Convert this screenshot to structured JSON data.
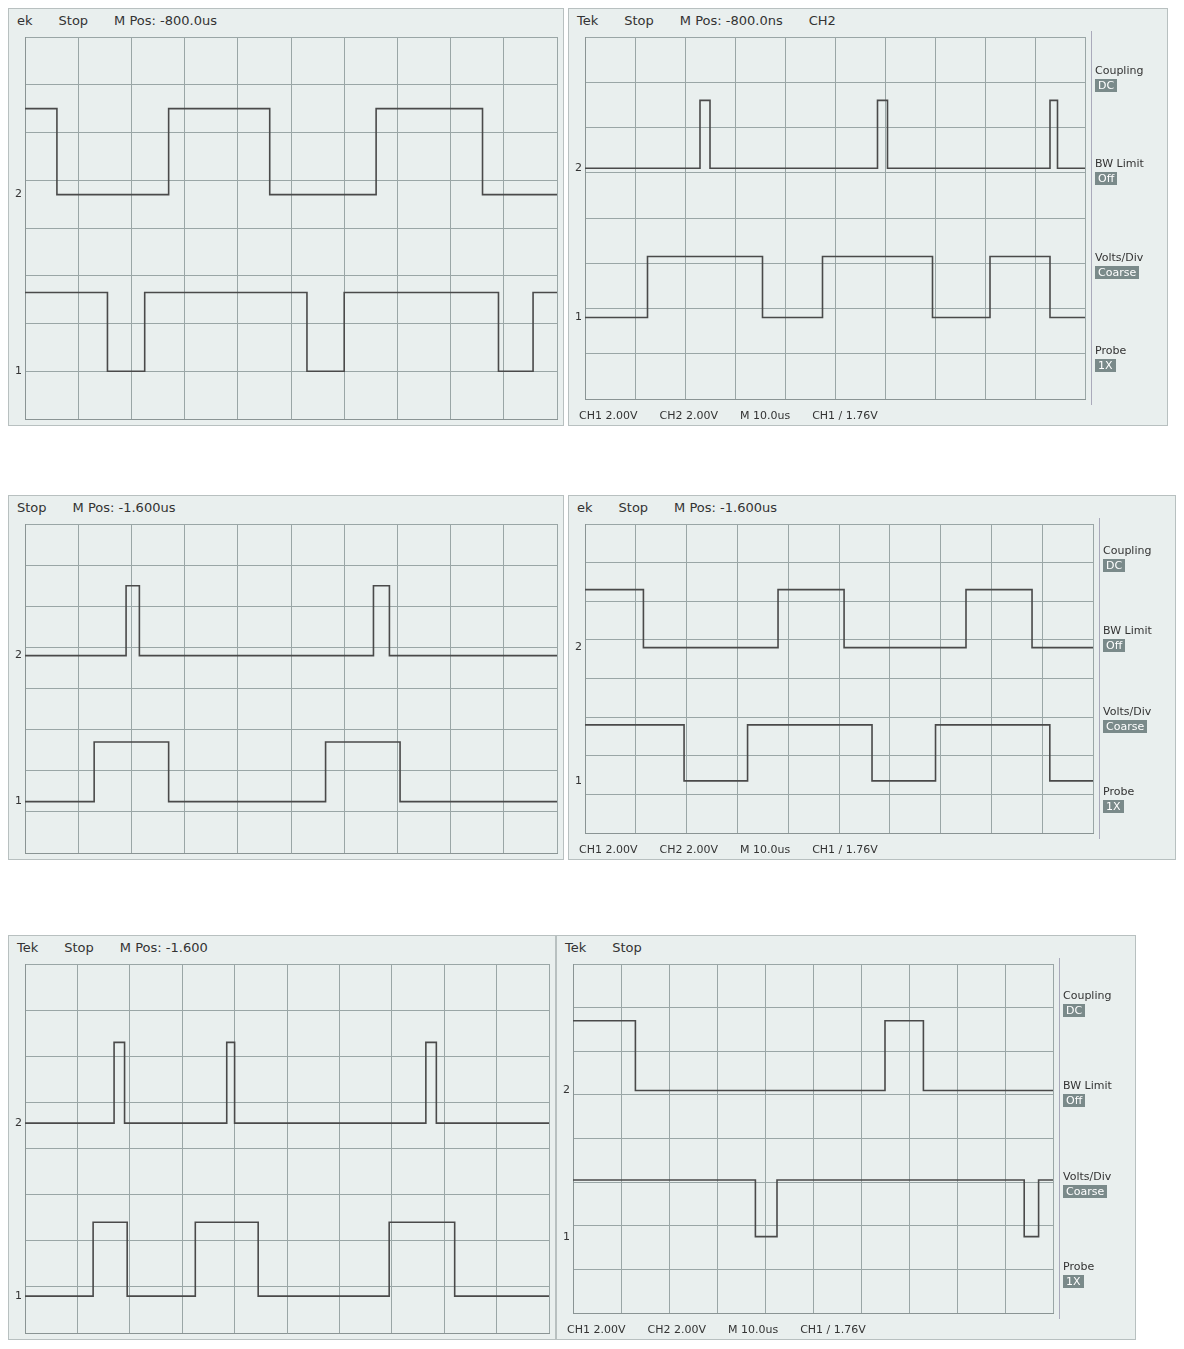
{
  "chart_data": [
    {
      "type": "line",
      "header": [
        "ek",
        "Stop",
        "M Pos: -800.0us"
      ],
      "side_menu": null,
      "footer": null,
      "xlim": [
        0,
        10
      ],
      "ylim": [
        0,
        8
      ],
      "xticks": [
        0,
        1,
        2,
        3,
        4,
        5,
        6,
        7,
        8,
        9,
        10
      ],
      "yticks": [
        0,
        1,
        2,
        3,
        4,
        5,
        6,
        7,
        8
      ],
      "grid": true,
      "tick_labels": false,
      "line_style": "stepped",
      "series": [
        {
          "name": "2",
          "color": "#4a4a4a",
          "x": [
            0,
            0.6,
            2.7,
            4.6,
            6.6,
            8.6,
            10
          ],
          "values": [
            6.5,
            4.7,
            6.5,
            4.7,
            6.5,
            4.7,
            4.7
          ]
        },
        {
          "name": "1",
          "color": "#4a4a4a",
          "x": [
            0,
            1.55,
            2.25,
            5.3,
            6.0,
            8.9,
            9.55,
            10
          ],
          "values": [
            2.65,
            1.0,
            2.65,
            1.0,
            2.65,
            1.0,
            2.65,
            2.65
          ]
        }
      ]
    },
    {
      "type": "line",
      "header": [
        "Tek",
        "Stop",
        "M Pos: -800.0ns",
        "CH2"
      ],
      "side_menu": [
        {
          "label": "Coupling",
          "value": "DC"
        },
        {
          "label": "BW Limit",
          "value": "Off"
        },
        {
          "label": "Volts/Div",
          "value": "Coarse"
        },
        {
          "label": "Probe",
          "value": "1X"
        }
      ],
      "footer": [
        "CH1 2.00V",
        "CH2 2.00V",
        "M 10.0us",
        "CH1 / 1.76V"
      ],
      "xlim": [
        0,
        10
      ],
      "ylim": [
        0,
        8
      ],
      "xticks": [
        0,
        1,
        2,
        3,
        4,
        5,
        6,
        7,
        8,
        9,
        10
      ],
      "yticks": [
        0,
        1,
        2,
        3,
        4,
        5,
        6,
        7,
        8
      ],
      "grid": true,
      "tick_labels": false,
      "line_style": "stepped",
      "series": [
        {
          "name": "2",
          "color": "#4a4a4a",
          "x": [
            0,
            2.3,
            2.5,
            5.85,
            6.05,
            9.3,
            9.45,
            10
          ],
          "values": [
            5.1,
            6.6,
            5.1,
            6.6,
            5.1,
            6.6,
            5.1,
            5.1
          ]
        },
        {
          "name": "1",
          "color": "#4a4a4a",
          "x": [
            0,
            1.25,
            3.55,
            4.75,
            6.95,
            8.1,
            9.3,
            10
          ],
          "values": [
            1.8,
            3.15,
            1.8,
            3.15,
            1.8,
            3.15,
            1.8,
            1.8
          ]
        }
      ]
    },
    {
      "type": "line",
      "header": [
        "Stop",
        "M Pos: -1.600us"
      ],
      "side_menu": null,
      "footer": null,
      "xlim": [
        0,
        10
      ],
      "ylim": [
        0,
        8
      ],
      "xticks": [
        0,
        1,
        2,
        3,
        4,
        5,
        6,
        7,
        8,
        9,
        10
      ],
      "yticks": [
        0,
        1,
        2,
        3,
        4,
        5,
        6,
        7,
        8
      ],
      "grid": true,
      "tick_labels": false,
      "line_style": "stepped",
      "series": [
        {
          "name": "2",
          "color": "#4a4a4a",
          "x": [
            0,
            1.9,
            2.15,
            6.55,
            6.85,
            10
          ],
          "values": [
            4.8,
            6.5,
            4.8,
            6.5,
            4.8,
            4.8
          ]
        },
        {
          "name": "1",
          "color": "#4a4a4a",
          "x": [
            0,
            1.3,
            2.7,
            5.65,
            7.05,
            10
          ],
          "values": [
            1.25,
            2.7,
            1.25,
            2.7,
            1.25,
            1.25
          ]
        }
      ]
    },
    {
      "type": "line",
      "header": [
        "ek",
        "Stop",
        "M Pos: -1.600us"
      ],
      "side_menu": [
        {
          "label": "Coupling",
          "value": "DC"
        },
        {
          "label": "BW Limit",
          "value": "Off"
        },
        {
          "label": "Volts/Div",
          "value": "Coarse"
        },
        {
          "label": "Probe",
          "value": "1X"
        }
      ],
      "footer": [
        "CH1 2.00V",
        "CH2 2.00V",
        "M 10.0us",
        "CH1 / 1.76V"
      ],
      "xlim": [
        0,
        10
      ],
      "ylim": [
        0,
        8
      ],
      "xticks": [
        0,
        1,
        2,
        3,
        4,
        5,
        6,
        7,
        8,
        9,
        10
      ],
      "yticks": [
        0,
        1,
        2,
        3,
        4,
        5,
        6,
        7,
        8
      ],
      "grid": true,
      "tick_labels": false,
      "line_style": "stepped",
      "series": [
        {
          "name": "2",
          "color": "#4a4a4a",
          "x": [
            0,
            1.15,
            3.8,
            5.1,
            7.5,
            8.8,
            10
          ],
          "values": [
            6.3,
            4.8,
            6.3,
            4.8,
            6.3,
            4.8,
            4.8
          ]
        },
        {
          "name": "1",
          "color": "#4a4a4a",
          "x": [
            0,
            1.95,
            3.2,
            5.65,
            6.9,
            9.15,
            10
          ],
          "values": [
            2.8,
            1.35,
            2.8,
            1.35,
            2.8,
            1.35,
            1.35
          ]
        }
      ]
    },
    {
      "type": "line",
      "header": [
        "Tek",
        "Stop",
        "M Pos: -1.600"
      ],
      "side_menu": null,
      "footer": null,
      "xlim": [
        0,
        10
      ],
      "ylim": [
        0,
        8
      ],
      "xticks": [
        0,
        1,
        2,
        3,
        4,
        5,
        6,
        7,
        8,
        9,
        10
      ],
      "yticks": [
        0,
        1,
        2,
        3,
        4,
        5,
        6,
        7,
        8
      ],
      "grid": true,
      "tick_labels": false,
      "line_style": "stepped",
      "series": [
        {
          "name": "2",
          "color": "#4a4a4a",
          "x": [
            0,
            1.7,
            1.9,
            3.85,
            4.0,
            7.65,
            7.85,
            10
          ],
          "values": [
            4.55,
            6.3,
            4.55,
            6.3,
            4.55,
            6.3,
            4.55,
            4.55
          ]
        },
        {
          "name": "1",
          "color": "#4a4a4a",
          "x": [
            0,
            1.3,
            1.95,
            3.25,
            4.45,
            6.95,
            8.2,
            10
          ],
          "values": [
            0.8,
            2.4,
            0.8,
            2.4,
            0.8,
            2.4,
            0.8,
            0.8
          ]
        }
      ]
    },
    {
      "type": "line",
      "header": [
        "Tek",
        "Stop"
      ],
      "side_menu": [
        {
          "label": "Coupling",
          "value": "DC"
        },
        {
          "label": "BW Limit",
          "value": "Off"
        },
        {
          "label": "Volts/Div",
          "value": "Coarse"
        },
        {
          "label": "Probe",
          "value": "1X"
        }
      ],
      "footer": [
        "CH1 2.00V",
        "CH2 2.00V",
        "M 10.0us",
        "CH1 / 1.76V"
      ],
      "xlim": [
        0,
        10
      ],
      "ylim": [
        0,
        8
      ],
      "xticks": [
        0,
        1,
        2,
        3,
        4,
        5,
        6,
        7,
        8,
        9,
        10
      ],
      "yticks": [
        0,
        1,
        2,
        3,
        4,
        5,
        6,
        7,
        8
      ],
      "grid": true,
      "tick_labels": false,
      "line_style": "stepped",
      "series": [
        {
          "name": "2",
          "color": "#4a4a4a",
          "x": [
            0,
            1.3,
            6.5,
            7.3,
            10
          ],
          "values": [
            6.7,
            5.1,
            6.7,
            5.1,
            5.1
          ]
        },
        {
          "name": "1",
          "color": "#4a4a4a",
          "x": [
            0,
            3.8,
            4.25,
            9.4,
            9.7,
            10
          ],
          "values": [
            3.05,
            1.75,
            3.05,
            1.75,
            3.05,
            3.05
          ]
        }
      ]
    }
  ]
}
